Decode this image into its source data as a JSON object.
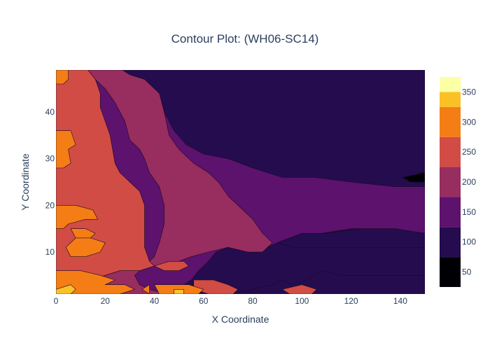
{
  "chart_data": {
    "type": "heatmap",
    "subtype": "contour",
    "title": "Contour Plot: (WH06-SC14)",
    "xlabel": "X Coordinate",
    "ylabel": "Y Coordinate",
    "xlim": [
      0,
      150
    ],
    "ylim": [
      1,
      49
    ],
    "x_ticks": [
      0,
      20,
      40,
      60,
      80,
      100,
      120,
      140
    ],
    "y_ticks": [
      10,
      20,
      30,
      40
    ],
    "colorbar": {
      "ticks": [
        50,
        100,
        150,
        200,
        250,
        300,
        350
      ],
      "range": [
        25,
        375
      ],
      "levels": [
        {
          "min": 25,
          "max": 75,
          "color": "#000004"
        },
        {
          "min": 75,
          "max": 125,
          "color": "#240c4f"
        },
        {
          "min": 125,
          "max": 175,
          "color": "#5d126e"
        },
        {
          "min": 175,
          "max": 225,
          "color": "#982d5f"
        },
        {
          "min": 225,
          "max": 275,
          "color": "#d14c45"
        },
        {
          "min": 275,
          "max": 325,
          "color": "#f57d15"
        },
        {
          "min": 325,
          "max": 375,
          "color": "#fac127"
        }
      ],
      "top_color": "#fcffa4"
    },
    "colorscale": "Inferno",
    "contour_line_color": "#1a0a1a",
    "regions": [
      {
        "level": 125,
        "points": [
          [
            0,
            49
          ],
          [
            150,
            49
          ],
          [
            150,
            1
          ],
          [
            0,
            1
          ]
        ]
      },
      {
        "level": 25,
        "points": [
          [
            47,
            49
          ],
          [
            150,
            49
          ],
          [
            150,
            36
          ],
          [
            139,
            36
          ],
          [
            125,
            37
          ],
          [
            110,
            38
          ],
          [
            95,
            40
          ],
          [
            82,
            42
          ],
          [
            68,
            45
          ],
          [
            58,
            48
          ],
          [
            50,
            49
          ]
        ]
      },
      {
        "level": 75,
        "points": [
          [
            27,
            49
          ],
          [
            150,
            49
          ],
          [
            150,
            24
          ],
          [
            138,
            24
          ],
          [
            120,
            25
          ],
          [
            105,
            26
          ],
          [
            92,
            26
          ],
          [
            80,
            28
          ],
          [
            70,
            30
          ],
          [
            60,
            31
          ],
          [
            53,
            33
          ],
          [
            48,
            36
          ],
          [
            44,
            40
          ],
          [
            42,
            44
          ],
          [
            36,
            47
          ],
          [
            30,
            48
          ]
        ]
      },
      {
        "level": 75,
        "points": [
          [
            150,
            14
          ],
          [
            136,
            15
          ],
          [
            120,
            15
          ],
          [
            108,
            14
          ],
          [
            95,
            13
          ],
          [
            90,
            12
          ],
          [
            86,
            11
          ],
          [
            82,
            10
          ],
          [
            78,
            10
          ],
          [
            70,
            11
          ],
          [
            65,
            10
          ],
          [
            62,
            8
          ],
          [
            58,
            6
          ],
          [
            55,
            4
          ],
          [
            52,
            3
          ],
          [
            50,
            2
          ],
          [
            44,
            1
          ],
          [
            150,
            1
          ]
        ]
      },
      {
        "level": 75,
        "points": [
          [
            150,
            5
          ],
          [
            132,
            5
          ],
          [
            116,
            5
          ],
          [
            108,
            6
          ],
          [
            102,
            4
          ],
          [
            96,
            3
          ],
          [
            92,
            4
          ],
          [
            88,
            3
          ],
          [
            80,
            2
          ],
          [
            72,
            1
          ],
          [
            150,
            1
          ]
        ]
      },
      {
        "level": 75,
        "points": [
          [
            150,
            14
          ],
          [
            138,
            15
          ],
          [
            124,
            15
          ],
          [
            110,
            14
          ],
          [
            100,
            14
          ],
          [
            95,
            13
          ],
          [
            90,
            12
          ],
          [
            97,
            11
          ],
          [
            110,
            11
          ],
          [
            125,
            11
          ],
          [
            140,
            11
          ],
          [
            150,
            11
          ]
        ]
      },
      {
        "level": 175,
        "points": [
          [
            13,
            49
          ],
          [
            27,
            49
          ],
          [
            30,
            48
          ],
          [
            36,
            47
          ],
          [
            42,
            44
          ],
          [
            44,
            40
          ],
          [
            46,
            35
          ],
          [
            50,
            32
          ],
          [
            56,
            29
          ],
          [
            62,
            27
          ],
          [
            66,
            25
          ],
          [
            70,
            22
          ],
          [
            76,
            19
          ],
          [
            80,
            17
          ],
          [
            84,
            14
          ],
          [
            88,
            12
          ],
          [
            84,
            10
          ],
          [
            78,
            10
          ],
          [
            70,
            11
          ],
          [
            62,
            10
          ],
          [
            55,
            9
          ],
          [
            50,
            8
          ],
          [
            40,
            7
          ],
          [
            34,
            6
          ],
          [
            32,
            5
          ],
          [
            34,
            3
          ],
          [
            38,
            2
          ],
          [
            45,
            1
          ],
          [
            12,
            1
          ],
          [
            14,
            4
          ],
          [
            20,
            5
          ],
          [
            26,
            6
          ],
          [
            36,
            7
          ],
          [
            40,
            9
          ],
          [
            42,
            12
          ],
          [
            44,
            16
          ],
          [
            44,
            20
          ],
          [
            42,
            24
          ],
          [
            38,
            27
          ],
          [
            36,
            30
          ],
          [
            34,
            32
          ],
          [
            30,
            34
          ],
          [
            28,
            38
          ],
          [
            24,
            42
          ],
          [
            20,
            45
          ],
          [
            16,
            47
          ]
        ]
      },
      {
        "level": 225,
        "points": [
          [
            0,
            49
          ],
          [
            13,
            49
          ],
          [
            16,
            47
          ],
          [
            18,
            44
          ],
          [
            18,
            41
          ],
          [
            20,
            38
          ],
          [
            22,
            35
          ],
          [
            23,
            32
          ],
          [
            24,
            29
          ],
          [
            26,
            27
          ],
          [
            30,
            25
          ],
          [
            34,
            23
          ],
          [
            36,
            20
          ],
          [
            36,
            17
          ],
          [
            36,
            14
          ],
          [
            36,
            11
          ],
          [
            38,
            8
          ],
          [
            40,
            7
          ],
          [
            34,
            6
          ],
          [
            26,
            6
          ],
          [
            20,
            5
          ],
          [
            14,
            4
          ],
          [
            12,
            1
          ],
          [
            0,
            1
          ]
        ]
      },
      {
        "level": 225,
        "points": [
          [
            40,
            7
          ],
          [
            46,
            8
          ],
          [
            52,
            8
          ],
          [
            54,
            7
          ],
          [
            50,
            6
          ],
          [
            44,
            6
          ]
        ]
      },
      {
        "level": 225,
        "points": [
          [
            56,
            4
          ],
          [
            64,
            4
          ],
          [
            70,
            3
          ],
          [
            74,
            2
          ],
          [
            72,
            1
          ],
          [
            62,
            1
          ],
          [
            56,
            2
          ]
        ]
      },
      {
        "level": 225,
        "points": [
          [
            92,
            2
          ],
          [
            100,
            3
          ],
          [
            106,
            2
          ],
          [
            104,
            1
          ],
          [
            95,
            1
          ]
        ]
      },
      {
        "level": 275,
        "points": [
          [
            0,
            49
          ],
          [
            5,
            49
          ],
          [
            5,
            47
          ],
          [
            3,
            46
          ],
          [
            0,
            46
          ]
        ]
      },
      {
        "level": 275,
        "points": [
          [
            0,
            36
          ],
          [
            6,
            36
          ],
          [
            8,
            33
          ],
          [
            5,
            32
          ],
          [
            6,
            29
          ],
          [
            3,
            28
          ],
          [
            0,
            28
          ]
        ]
      },
      {
        "level": 275,
        "points": [
          [
            0,
            20
          ],
          [
            8,
            20
          ],
          [
            15,
            19
          ],
          [
            17,
            17
          ],
          [
            12,
            17
          ],
          [
            5,
            16
          ],
          [
            3,
            15
          ],
          [
            0,
            15
          ]
        ]
      },
      {
        "level": 275,
        "points": [
          [
            6,
            15
          ],
          [
            12,
            15
          ],
          [
            16,
            14
          ],
          [
            14,
            13
          ],
          [
            8,
            13
          ]
        ]
      },
      {
        "level": 275,
        "points": [
          [
            4,
            11
          ],
          [
            8,
            13
          ],
          [
            14,
            13
          ],
          [
            20,
            12
          ],
          [
            18,
            10
          ],
          [
            12,
            9
          ],
          [
            6,
            9
          ]
        ]
      },
      {
        "level": 275,
        "points": [
          [
            0,
            6
          ],
          [
            10,
            6
          ],
          [
            18,
            5
          ],
          [
            24,
            4
          ],
          [
            20,
            3
          ],
          [
            28,
            3
          ],
          [
            32,
            2
          ],
          [
            26,
            1
          ],
          [
            0,
            1
          ]
        ]
      },
      {
        "level": 275,
        "points": [
          [
            40,
            3
          ],
          [
            54,
            3
          ],
          [
            60,
            2
          ],
          [
            58,
            1
          ],
          [
            42,
            1
          ]
        ]
      },
      {
        "level": 275,
        "points": [
          [
            35,
            2
          ],
          [
            38,
            3
          ],
          [
            38,
            1
          ]
        ]
      },
      {
        "level": 325,
        "points": [
          [
            0,
            2
          ],
          [
            6,
            3
          ],
          [
            8,
            2
          ],
          [
            6,
            1
          ],
          [
            0,
            1
          ]
        ]
      },
      {
        "level": 325,
        "points": [
          [
            48,
            2
          ],
          [
            52,
            2
          ],
          [
            52,
            1
          ],
          [
            48,
            1
          ]
        ]
      },
      {
        "level": 75,
        "points": [
          [
            148,
            27
          ],
          [
            150,
            27
          ],
          [
            150,
            25
          ],
          [
            146,
            25
          ]
        ]
      },
      {
        "level": 25,
        "points": [
          [
            141,
            26
          ],
          [
            150,
            27
          ],
          [
            150,
            25
          ],
          [
            144,
            25
          ]
        ]
      }
    ]
  }
}
